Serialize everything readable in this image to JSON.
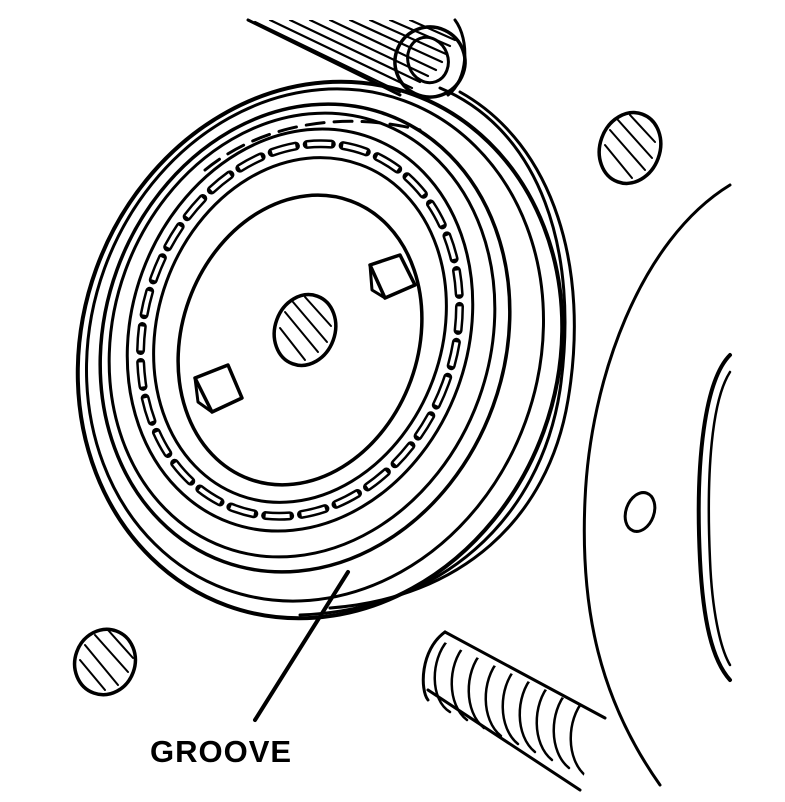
{
  "callouts": [
    {
      "id": "groove",
      "label": "GROOVE"
    }
  ],
  "colors": {
    "ink": "#000000",
    "paper": "#ffffff"
  }
}
